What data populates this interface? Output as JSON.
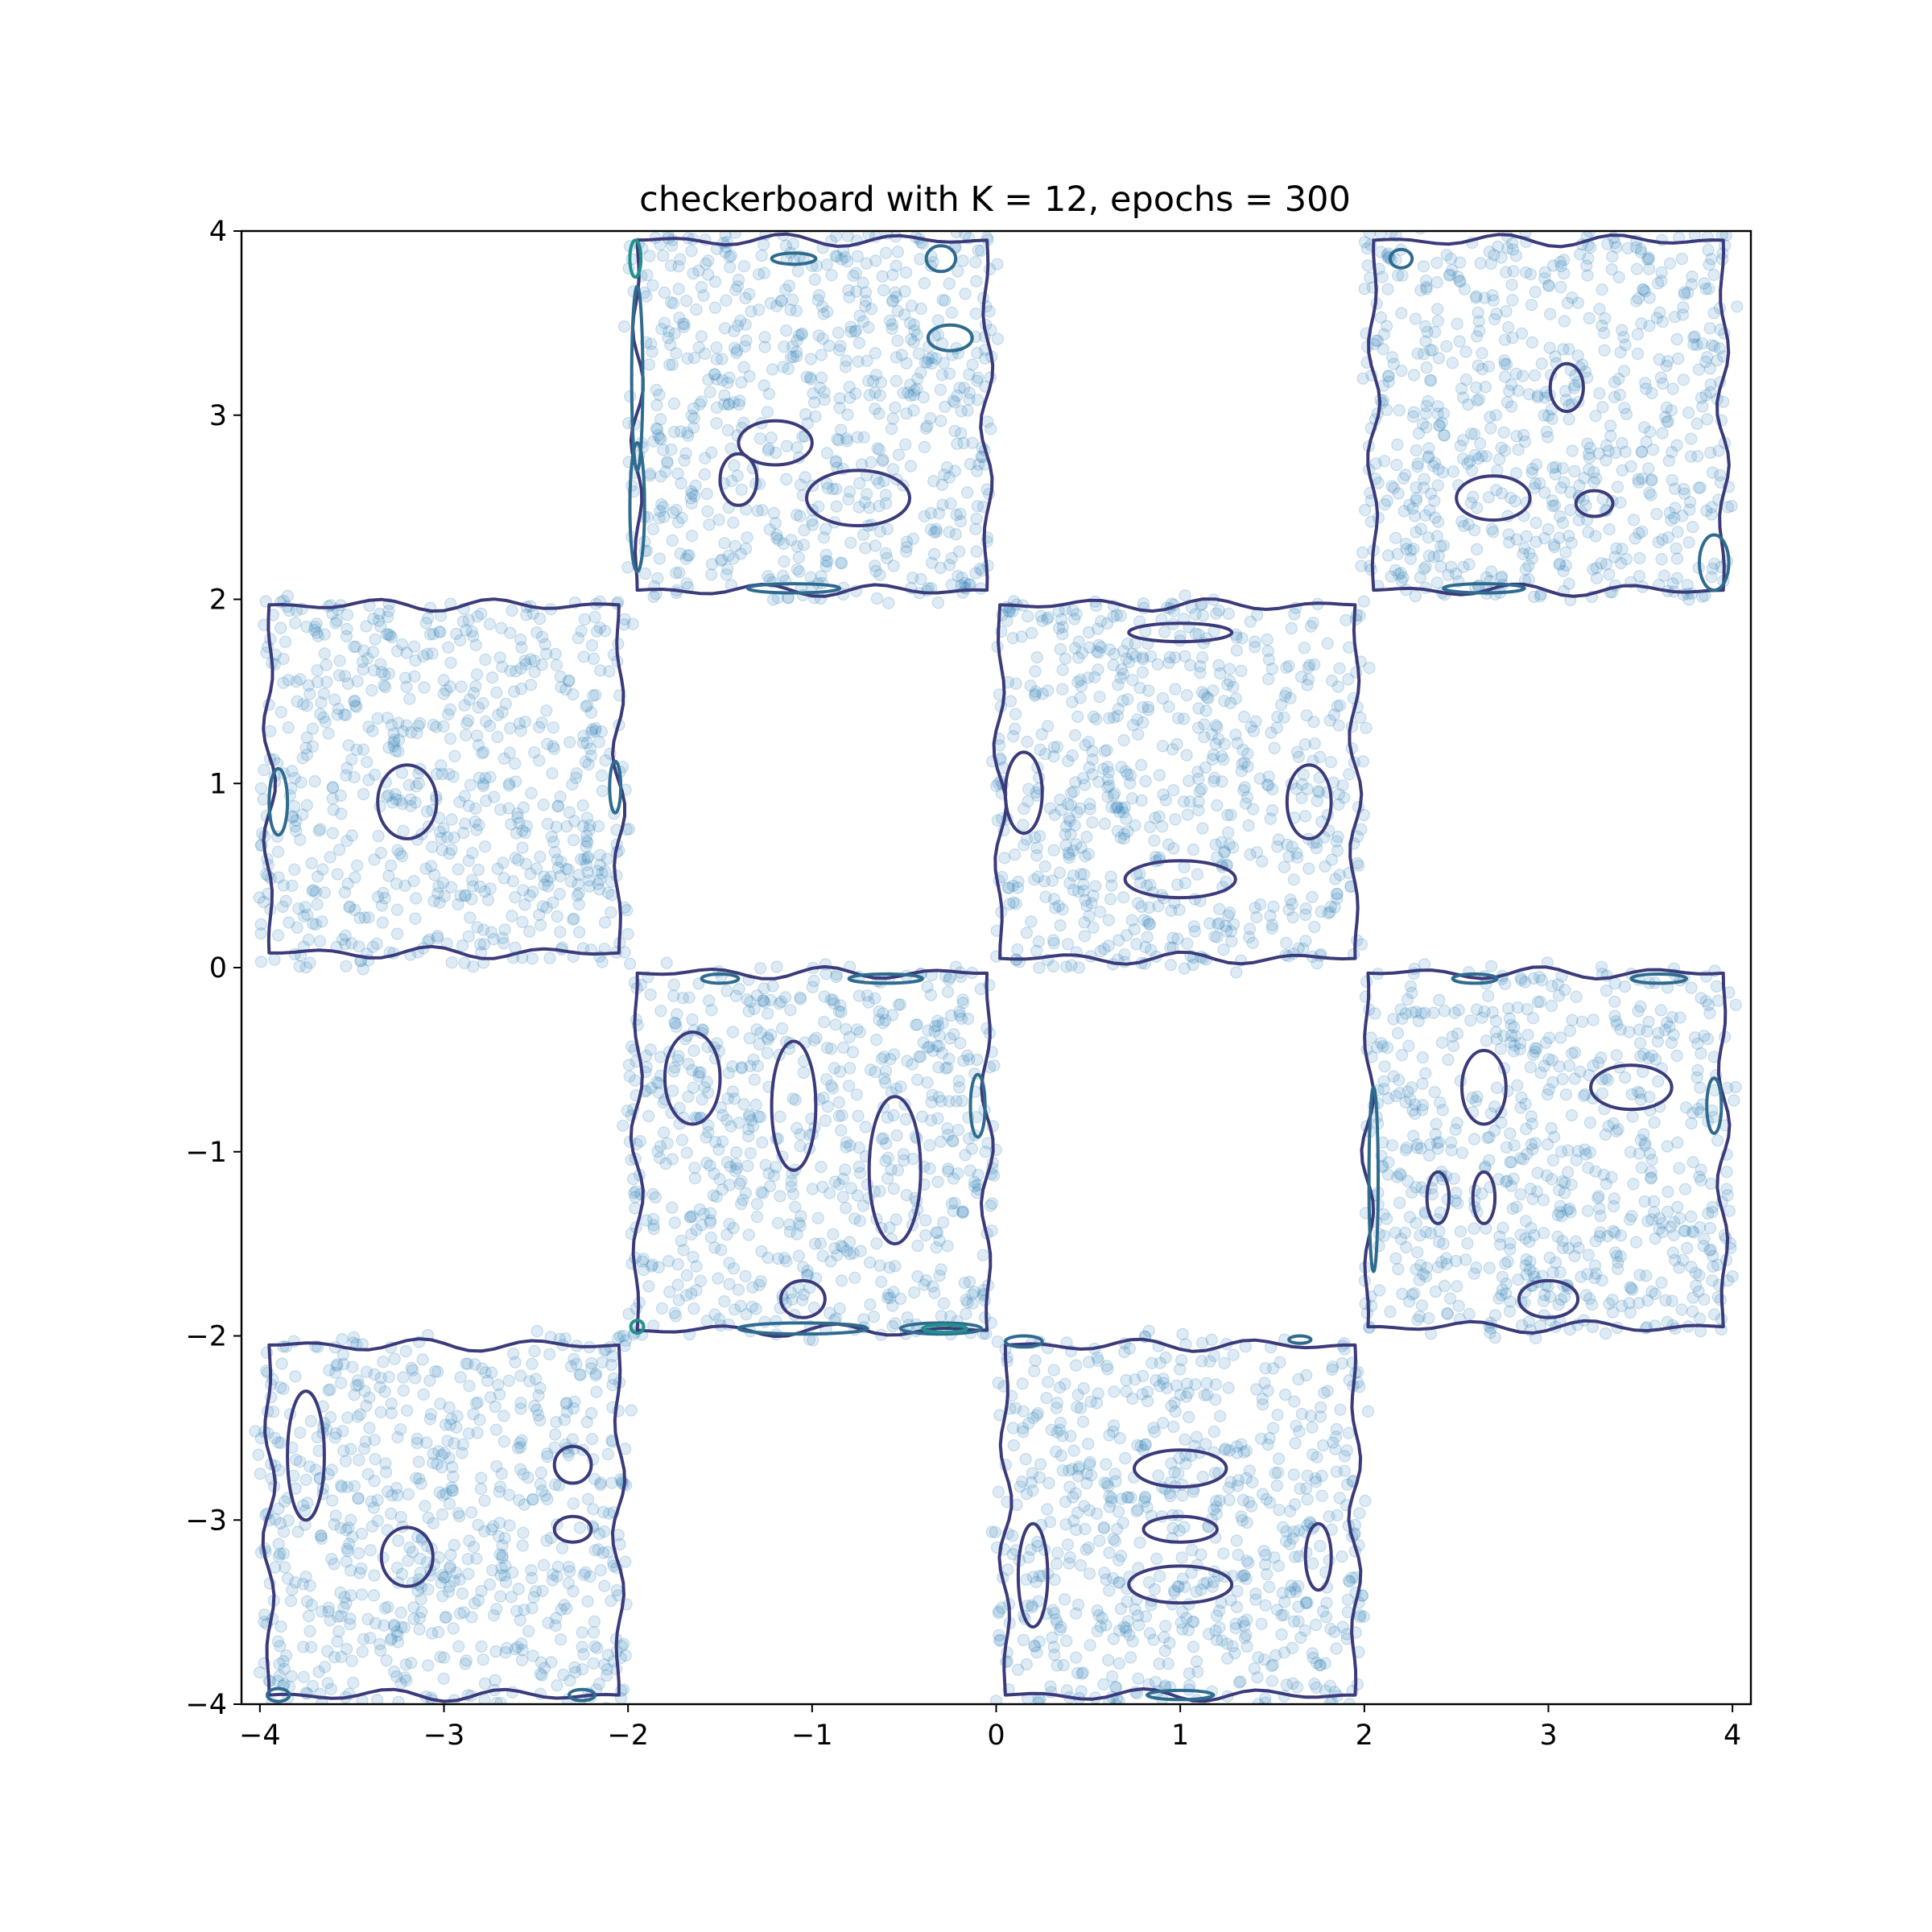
{
  "chart_data": {
    "type": "scatter",
    "title": "checkerboard with K = 12, epochs = 300",
    "xlabel": "",
    "ylabel": "",
    "xlim": [
      -4.1,
      4.1
    ],
    "ylim": [
      -4.0,
      4.0
    ],
    "x_ticks": [
      -4,
      -3,
      -2,
      -1,
      0,
      1,
      2,
      3,
      4
    ],
    "y_ticks": [
      -4,
      -3,
      -2,
      -1,
      0,
      1,
      2,
      3,
      4
    ],
    "x_tick_labels": [
      "−4",
      "−3",
      "−2",
      "−1",
      "0",
      "1",
      "2",
      "3",
      "4"
    ],
    "y_tick_labels": [
      "−4",
      "−3",
      "−2",
      "−1",
      "0",
      "1",
      "2",
      "3",
      "4"
    ],
    "grid": false,
    "legend": "none",
    "scatter_color": "#1f77b4",
    "scatter_alpha": 0.15,
    "contour_colormap": "viridis",
    "points_per_square": 700,
    "squares": [
      {
        "x": [
          -2,
          0
        ],
        "y": [
          2,
          4
        ]
      },
      {
        "x": [
          2,
          4
        ],
        "y": [
          2,
          4
        ]
      },
      {
        "x": [
          -4,
          -2
        ],
        "y": [
          0,
          2
        ]
      },
      {
        "x": [
          0,
          2
        ],
        "y": [
          0,
          2
        ]
      },
      {
        "x": [
          -2,
          0
        ],
        "y": [
          -2,
          0
        ]
      },
      {
        "x": [
          2,
          4
        ],
        "y": [
          -2,
          0
        ]
      },
      {
        "x": [
          -4,
          -2
        ],
        "y": [
          -4,
          -2
        ]
      },
      {
        "x": [
          0,
          2
        ],
        "y": [
          -4,
          -2
        ]
      }
    ],
    "contours": [
      {
        "level": "outer",
        "color": "#3b3a7a",
        "rect": [
          -1.95,
          2.05,
          -0.05,
          3.95
        ]
      },
      {
        "level": "outer",
        "color": "#3b3a7a",
        "rect": [
          2.05,
          2.05,
          3.95,
          3.95
        ]
      },
      {
        "level": "outer",
        "color": "#3b3a7a",
        "rect": [
          -3.95,
          0.08,
          -2.05,
          1.97
        ]
      },
      {
        "level": "outer",
        "color": "#3b3a7a",
        "rect": [
          0.02,
          0.05,
          1.95,
          1.97
        ]
      },
      {
        "level": "outer",
        "color": "#3b3a7a",
        "rect": [
          -1.95,
          -1.97,
          -0.05,
          -0.03
        ]
      },
      {
        "level": "outer",
        "color": "#3b3a7a",
        "rect": [
          2.02,
          -1.95,
          3.95,
          -0.03
        ]
      },
      {
        "level": "outer",
        "color": "#3b3a7a",
        "rect": [
          -3.95,
          -3.95,
          -2.05,
          -2.05
        ]
      },
      {
        "level": "outer",
        "color": "#3b3a7a",
        "rect": [
          0.05,
          -3.95,
          1.95,
          -2.05
        ]
      },
      {
        "level": "inner",
        "color": "#3b3a7a",
        "ellipse": [
          -3.2,
          0.9,
          0.16,
          0.2
        ]
      },
      {
        "level": "inner",
        "color": "#3b3a7a",
        "ellipse": [
          1.0,
          0.48,
          0.3,
          0.1
        ]
      },
      {
        "level": "inner",
        "color": "#3b3a7a",
        "ellipse": [
          1.0,
          1.82,
          0.28,
          0.05
        ]
      },
      {
        "level": "inner",
        "color": "#3b3a7a",
        "ellipse": [
          0.15,
          0.95,
          0.1,
          0.22
        ]
      },
      {
        "level": "inner",
        "color": "#3b3a7a",
        "ellipse": [
          1.7,
          0.9,
          0.12,
          0.2
        ]
      },
      {
        "level": "inner",
        "color": "#3b3a7a",
        "ellipse": [
          -1.2,
          2.85,
          0.2,
          0.12
        ]
      },
      {
        "level": "inner",
        "color": "#3b3a7a",
        "ellipse": [
          -0.75,
          2.55,
          0.28,
          0.15
        ]
      },
      {
        "level": "inner",
        "color": "#3b3a7a",
        "ellipse": [
          -1.4,
          2.65,
          0.1,
          0.14
        ]
      },
      {
        "level": "inner",
        "color": "#3b3a7a",
        "ellipse": [
          3.1,
          3.15,
          0.09,
          0.13
        ]
      },
      {
        "level": "inner",
        "color": "#3b3a7a",
        "ellipse": [
          2.7,
          2.55,
          0.2,
          0.12
        ]
      },
      {
        "level": "inner",
        "color": "#3b3a7a",
        "ellipse": [
          3.25,
          2.52,
          0.1,
          0.07
        ]
      },
      {
        "level": "inner",
        "color": "#3b3a7a",
        "ellipse": [
          -3.2,
          -3.2,
          0.14,
          0.16
        ]
      },
      {
        "level": "inner",
        "color": "#3b3a7a",
        "ellipse": [
          -3.75,
          -2.65,
          0.1,
          0.35
        ]
      },
      {
        "level": "inner",
        "color": "#3b3a7a",
        "ellipse": [
          -2.3,
          -2.7,
          0.1,
          0.1
        ]
      },
      {
        "level": "inner",
        "color": "#3b3a7a",
        "ellipse": [
          -2.3,
          -3.05,
          0.1,
          0.07
        ]
      },
      {
        "level": "inner",
        "color": "#3b3a7a",
        "ellipse": [
          1.0,
          -2.72,
          0.25,
          0.1
        ]
      },
      {
        "level": "inner",
        "color": "#3b3a7a",
        "ellipse": [
          1.0,
          -3.05,
          0.2,
          0.07
        ]
      },
      {
        "level": "inner",
        "color": "#3b3a7a",
        "ellipse": [
          1.0,
          -3.35,
          0.28,
          0.1
        ]
      },
      {
        "level": "inner",
        "color": "#3b3a7a",
        "ellipse": [
          0.2,
          -3.3,
          0.08,
          0.28
        ]
      },
      {
        "level": "inner",
        "color": "#3b3a7a",
        "ellipse": [
          1.75,
          -3.2,
          0.07,
          0.18
        ]
      },
      {
        "level": "inner",
        "color": "#3b3a7a",
        "ellipse": [
          -0.55,
          -1.1,
          0.14,
          0.4
        ]
      },
      {
        "level": "inner",
        "color": "#3b3a7a",
        "ellipse": [
          -1.65,
          -0.6,
          0.15,
          0.25
        ]
      },
      {
        "level": "inner",
        "color": "#3b3a7a",
        "ellipse": [
          -1.1,
          -0.75,
          0.12,
          0.35
        ]
      },
      {
        "level": "inner",
        "color": "#3b3a7a",
        "ellipse": [
          -1.05,
          -1.8,
          0.12,
          0.1
        ]
      },
      {
        "level": "inner",
        "color": "#3b3a7a",
        "ellipse": [
          2.65,
          -0.65,
          0.12,
          0.2
        ]
      },
      {
        "level": "inner",
        "color": "#3b3a7a",
        "ellipse": [
          3.45,
          -0.65,
          0.22,
          0.12
        ]
      },
      {
        "level": "inner",
        "color": "#3b3a7a",
        "ellipse": [
          2.4,
          -1.25,
          0.06,
          0.14
        ]
      },
      {
        "level": "inner",
        "color": "#3b3a7a",
        "ellipse": [
          2.65,
          -1.25,
          0.06,
          0.14
        ]
      },
      {
        "level": "inner",
        "color": "#3b3a7a",
        "ellipse": [
          3.0,
          -1.8,
          0.16,
          0.1
        ]
      },
      {
        "level": "mid",
        "color": "#2f6b8e",
        "ellipse": [
          -3.9,
          0.9,
          0.05,
          0.18
        ]
      },
      {
        "level": "mid",
        "color": "#2f6b8e",
        "ellipse": [
          -2.07,
          0.98,
          0.03,
          0.14
        ]
      },
      {
        "level": "mid",
        "color": "#2f6b8e",
        "ellipse": [
          -1.95,
          3.2,
          0.03,
          0.5
        ]
      },
      {
        "level": "mid",
        "color": "#2f6b8e",
        "ellipse": [
          -1.95,
          2.5,
          0.04,
          0.35
        ]
      },
      {
        "level": "mid",
        "color": "#2f6b8e",
        "ellipse": [
          -1.1,
          3.85,
          0.12,
          0.03
        ]
      },
      {
        "level": "mid",
        "color": "#2f6b8e",
        "ellipse": [
          -0.3,
          3.85,
          0.08,
          0.07
        ]
      },
      {
        "level": "mid",
        "color": "#2f6b8e",
        "ellipse": [
          -0.25,
          3.42,
          0.12,
          0.07
        ]
      },
      {
        "level": "mid",
        "color": "#2f6b8e",
        "ellipse": [
          -1.1,
          2.06,
          0.25,
          0.025
        ]
      },
      {
        "level": "mid",
        "color": "#2f6b8e",
        "ellipse": [
          2.65,
          2.06,
          0.22,
          0.025
        ]
      },
      {
        "level": "mid",
        "color": "#2f6b8e",
        "ellipse": [
          2.2,
          3.85,
          0.06,
          0.05
        ]
      },
      {
        "level": "mid",
        "color": "#2f6b8e",
        "ellipse": [
          3.9,
          2.2,
          0.08,
          0.15
        ]
      },
      {
        "level": "mid",
        "color": "#2f6b8e",
        "ellipse": [
          -0.1,
          -0.75,
          0.04,
          0.17
        ]
      },
      {
        "level": "mid",
        "color": "#2f6b8e",
        "ellipse": [
          -0.6,
          -0.06,
          0.2,
          0.025
        ]
      },
      {
        "level": "mid",
        "color": "#2f6b8e",
        "ellipse": [
          -1.5,
          -0.06,
          0.1,
          0.025
        ]
      },
      {
        "level": "mid",
        "color": "#2f6b8e",
        "ellipse": [
          -1.05,
          -1.96,
          0.35,
          0.03
        ]
      },
      {
        "level": "mid",
        "color": "#2f6b8e",
        "ellipse": [
          -0.3,
          -1.96,
          0.22,
          0.03
        ]
      },
      {
        "level": "mid",
        "color": "#2f6b8e",
        "ellipse": [
          2.05,
          -1.15,
          0.025,
          0.5
        ]
      },
      {
        "level": "mid",
        "color": "#2f6b8e",
        "ellipse": [
          3.9,
          -0.75,
          0.04,
          0.15
        ]
      },
      {
        "level": "mid",
        "color": "#2f6b8e",
        "ellipse": [
          3.6,
          -0.06,
          0.15,
          0.025
        ]
      },
      {
        "level": "mid",
        "color": "#2f6b8e",
        "ellipse": [
          2.6,
          -0.06,
          0.12,
          0.025
        ]
      },
      {
        "level": "mid",
        "color": "#2f6b8e",
        "ellipse": [
          -3.9,
          -3.95,
          0.06,
          0.035
        ]
      },
      {
        "level": "mid",
        "color": "#2f6b8e",
        "ellipse": [
          -2.25,
          -3.95,
          0.07,
          0.03
        ]
      },
      {
        "level": "mid",
        "color": "#2f6b8e",
        "ellipse": [
          0.15,
          -2.03,
          0.1,
          0.03
        ]
      },
      {
        "level": "mid",
        "color": "#2f6b8e",
        "ellipse": [
          1.0,
          -3.95,
          0.18,
          0.025
        ]
      },
      {
        "level": "mid",
        "color": "#2f6b8e",
        "ellipse": [
          1.65,
          -2.02,
          0.06,
          0.02
        ]
      },
      {
        "level": "peak",
        "color": "#21918c",
        "ellipse": [
          -1.96,
          3.85,
          0.03,
          0.1
        ]
      },
      {
        "level": "peak",
        "color": "#21918c",
        "ellipse": [
          -1.95,
          -1.95,
          0.035,
          0.035
        ]
      },
      {
        "level": "peak",
        "color": "#21918c",
        "ellipse": [
          -0.28,
          -1.96,
          0.12,
          0.02
        ]
      }
    ]
  }
}
